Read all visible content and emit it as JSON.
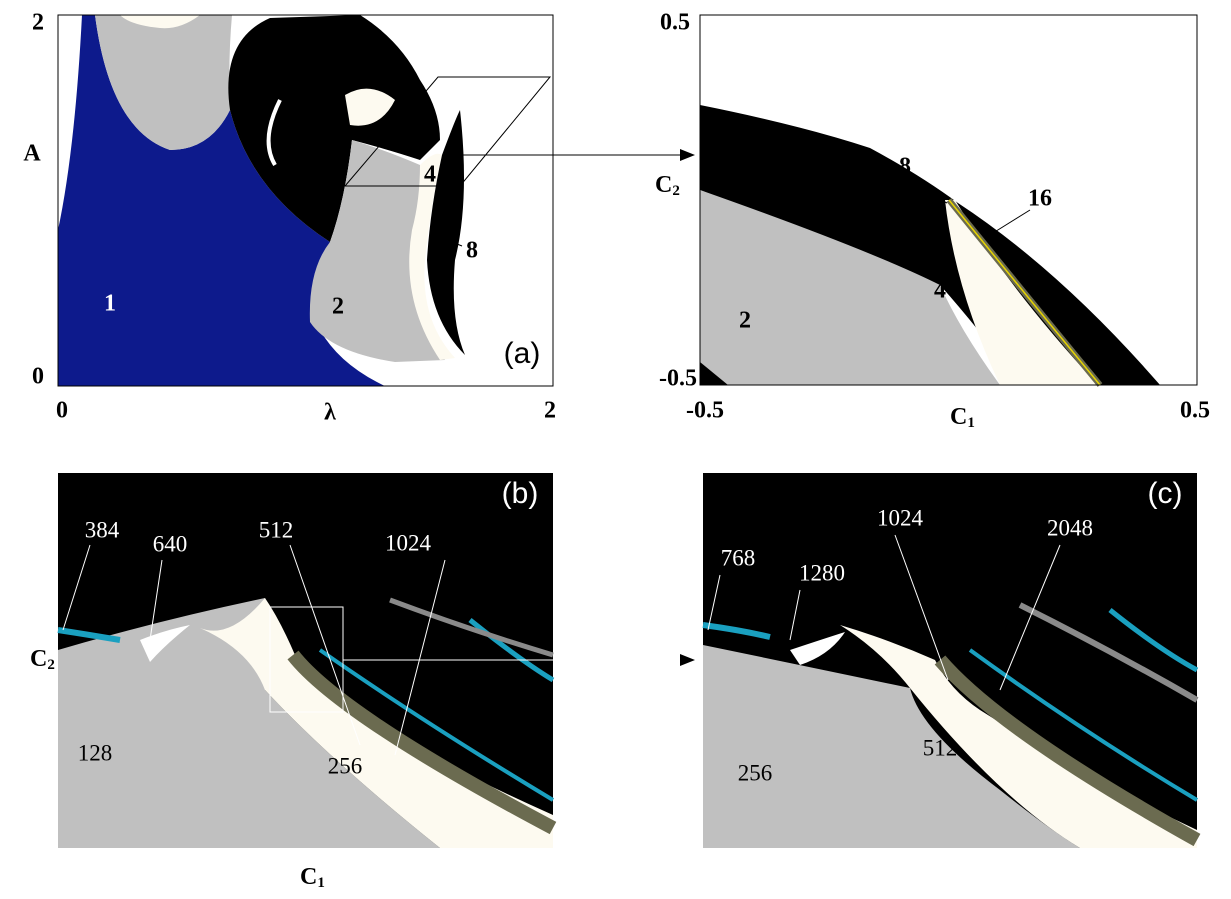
{
  "panels": [
    {
      "x_label": "λ",
      "y_label": "A",
      "x_ticks": [
        "0",
        "2"
      ],
      "y_ticks": [
        "0",
        "2"
      ],
      "region_labels": [
        "1",
        "2",
        "4",
        "8"
      ],
      "panel_label": "(a)"
    },
    {
      "x_label": {
        "base": "C",
        "sub": "1"
      },
      "y_label": {
        "base": "C",
        "sub": "2"
      },
      "x_ticks": [
        "-0.5",
        "0.5"
      ],
      "y_ticks": [
        "-0.5",
        "0.5"
      ],
      "region_labels": [
        "2",
        "4",
        "8",
        "16"
      ]
    },
    {
      "x_label": {
        "base": "C",
        "sub": "1"
      },
      "y_label": {
        "base": "C",
        "sub": "2"
      },
      "region_labels": [
        "384",
        "640",
        "512",
        "1024",
        "128",
        "256"
      ],
      "panel_label": "(b)"
    },
    {
      "region_labels": [
        "768",
        "1280",
        "1024",
        "2048",
        "512",
        "256"
      ],
      "panel_label": "(c)"
    }
  ]
}
